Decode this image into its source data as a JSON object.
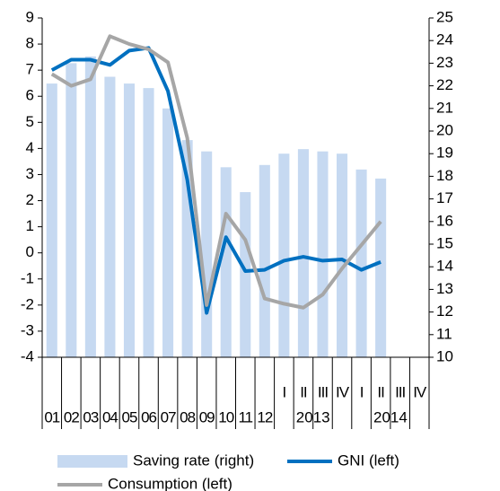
{
  "chart_data": {
    "type": "bar",
    "categories": [
      "01",
      "02",
      "03",
      "04",
      "05",
      "06",
      "07",
      "08",
      "09",
      "10",
      "11",
      "12",
      "I",
      "II",
      "III",
      "IV",
      "I",
      "II",
      "III",
      "IV"
    ],
    "groups": [
      {
        "label": "2013",
        "size": 4
      },
      {
        "label": "2014",
        "size": 4
      }
    ],
    "series": [
      {
        "name": "Saving rate (right)",
        "type": "bar",
        "axis": "y2",
        "color": "#c6d9f1",
        "values": [
          22.1,
          23.0,
          23.3,
          22.4,
          22.1,
          21.9,
          21.0,
          19.6,
          19.1,
          18.4,
          17.3,
          18.5,
          19.0,
          19.2,
          19.1,
          19.0,
          18.3,
          17.9,
          null,
          null
        ]
      },
      {
        "name": "GNI (left)",
        "type": "line",
        "color": "#0070c0",
        "values": [
          7.0,
          7.4,
          7.4,
          7.2,
          7.75,
          7.85,
          6.2,
          2.8,
          -2.3,
          0.6,
          -0.7,
          -0.65,
          -0.3,
          -0.15,
          -0.3,
          -0.25,
          -0.65,
          -0.35,
          null,
          null
        ]
      },
      {
        "name": "Consumption (left)",
        "type": "line",
        "color": "#a6a6a6",
        "values": [
          6.85,
          6.4,
          6.65,
          8.3,
          8.0,
          7.8,
          7.3,
          4.4,
          -2.0,
          1.5,
          0.5,
          -1.75,
          -1.95,
          -2.1,
          -1.6,
          -0.6,
          0.3,
          1.2,
          null,
          null
        ]
      }
    ],
    "ylim": [
      -4,
      9
    ],
    "yticks": [
      -4,
      -3,
      -2,
      -1,
      0,
      1,
      2,
      3,
      4,
      5,
      6,
      7,
      8,
      9
    ],
    "y2lim": [
      10,
      25
    ],
    "y2ticks": [
      10,
      11,
      12,
      13,
      14,
      15,
      16,
      17,
      18,
      19,
      20,
      21,
      22,
      23,
      24,
      25
    ]
  }
}
